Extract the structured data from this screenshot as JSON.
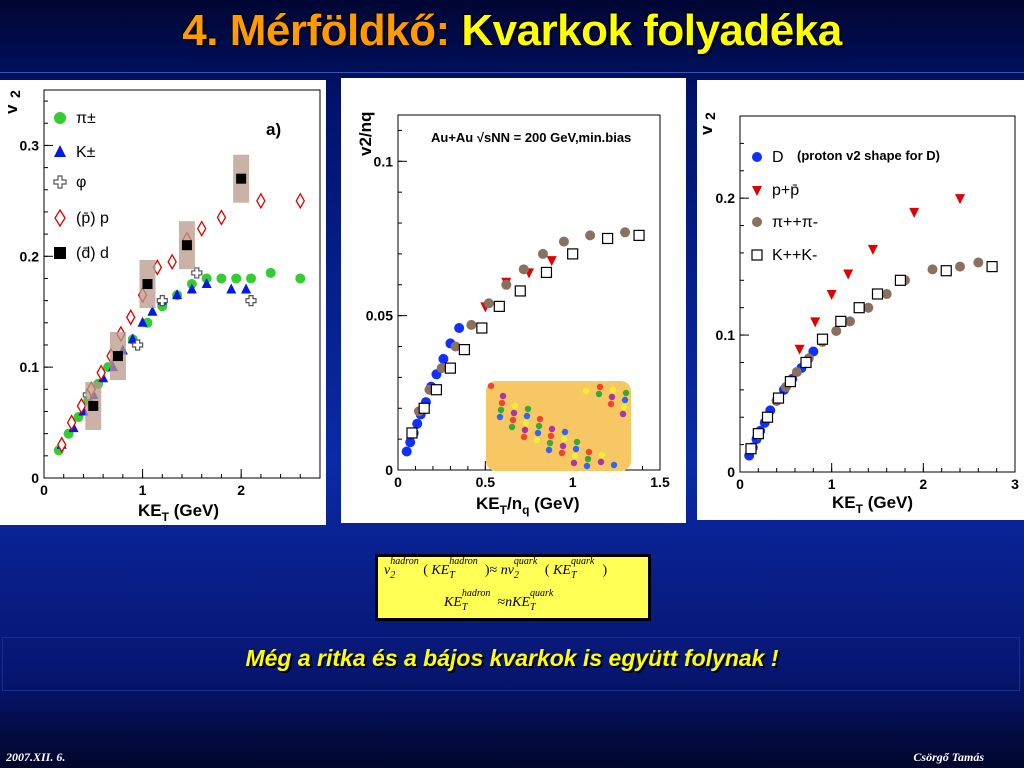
{
  "slide": {
    "title_prefix": "4. Mérföldkő: ",
    "title_main": "Kvarkok folyadéka",
    "statement": "Még a ritka és a bájos kvarkok is együtt folynak !",
    "footer_date": "2007.XII. 6.",
    "footer_author": "Csörgő Tamás",
    "formula": {
      "v": "v",
      "hadron": "hadron",
      "quark": "quark",
      "two": "2",
      "T": "T",
      "KE": "KE",
      "approx": "≈",
      "n": "n",
      "lparen": "(",
      "rparen": ")"
    }
  },
  "chart_data": [
    {
      "type": "scatter",
      "panel_label": "a)",
      "xlabel": "KE",
      "xlabel_sub": "T",
      "xlabel_unit": " (GeV)",
      "ylabel": "v",
      "ylabel_sub": "2",
      "xlim": [
        0,
        2.8
      ],
      "ylim": [
        0,
        0.35
      ],
      "xticks": [
        0,
        1,
        2
      ],
      "yticks": [
        0,
        0.1,
        0.2,
        0.3
      ],
      "legend": [
        "π±",
        "K±",
        "φ",
        "(p̄) p",
        "(d̄) d"
      ],
      "series": [
        {
          "name": "π±",
          "color": "#33cc33",
          "marker": "circle",
          "x": [
            0.15,
            0.25,
            0.35,
            0.45,
            0.55,
            0.65,
            0.75,
            0.9,
            1.05,
            1.2,
            1.35,
            1.5,
            1.65,
            1.8,
            1.95,
            2.1,
            2.3,
            2.6
          ],
          "y": [
            0.025,
            0.04,
            0.055,
            0.07,
            0.085,
            0.1,
            0.11,
            0.125,
            0.14,
            0.155,
            0.165,
            0.175,
            0.18,
            0.18,
            0.18,
            0.18,
            0.185,
            0.18
          ]
        },
        {
          "name": "K±",
          "color": "#0018e8",
          "marker": "triangle",
          "x": [
            0.18,
            0.3,
            0.4,
            0.5,
            0.6,
            0.7,
            0.8,
            0.9,
            1.0,
            1.1,
            1.2,
            1.35,
            1.5,
            1.65,
            1.9,
            2.05
          ],
          "y": [
            0.03,
            0.045,
            0.06,
            0.075,
            0.09,
            0.1,
            0.115,
            0.125,
            0.14,
            0.15,
            0.16,
            0.165,
            0.17,
            0.175,
            0.17,
            0.17
          ]
        },
        {
          "name": "φ",
          "color": "#555555",
          "marker": "cross",
          "x": [
            0.45,
            0.95,
            1.2,
            1.55,
            2.1
          ],
          "y": [
            0.075,
            0.12,
            0.16,
            0.185,
            0.16
          ]
        },
        {
          "name": "(p̄) p",
          "color": "#e00000",
          "marker": "diamond",
          "x": [
            0.18,
            0.28,
            0.38,
            0.48,
            0.58,
            0.68,
            0.78,
            0.88,
            1.0,
            1.15,
            1.3,
            1.45,
            1.6,
            1.8,
            2.2,
            2.6
          ],
          "y": [
            0.03,
            0.05,
            0.065,
            0.08,
            0.095,
            0.11,
            0.13,
            0.145,
            0.165,
            0.19,
            0.195,
            0.215,
            0.225,
            0.235,
            0.25,
            0.25
          ]
        },
        {
          "name": "(d̄) d",
          "color": "#000000",
          "marker": "square",
          "x": [
            0.5,
            0.75,
            1.05,
            1.45,
            2.0
          ],
          "y": [
            0.065,
            0.11,
            0.175,
            0.21,
            0.27
          ]
        }
      ]
    },
    {
      "type": "scatter",
      "annotation": "Au+Au √sNN = 200 GeV,min.bias",
      "xlabel": "KE",
      "xlabel_sub": "T",
      "xlabel_mid": "/n",
      "xlabel_sub2": "q",
      "xlabel_unit": " (GeV)",
      "ylabel": "v",
      "ylabel_sub": "2",
      "ylabel_mid": "/n",
      "ylabel_sub2": "q",
      "xlim": [
        0,
        1.5
      ],
      "ylim": [
        0,
        0.115
      ],
      "xticks": [
        0,
        0.5,
        1,
        1.5
      ],
      "xtick_labels": [
        "0",
        "0.5",
        "1",
        "1.5"
      ],
      "yticks": [
        0,
        0.05,
        0.1
      ],
      "ytick_labels": [
        "0",
        "0.05",
        "0.1"
      ],
      "series": [
        {
          "name": "D",
          "color": "#1030ff",
          "marker": "circle",
          "x": [
            0.05,
            0.07,
            0.09,
            0.11,
            0.13,
            0.16,
            0.19,
            0.22,
            0.26,
            0.3,
            0.35
          ],
          "y": [
            0.006,
            0.009,
            0.012,
            0.015,
            0.018,
            0.022,
            0.027,
            0.031,
            0.036,
            0.041,
            0.046
          ]
        },
        {
          "name": "p+p̄",
          "color": "#e00000",
          "marker": "triangle-down",
          "x": [
            0.5,
            0.62,
            0.75,
            0.88
          ],
          "y": [
            0.053,
            0.061,
            0.064,
            0.068
          ]
        },
        {
          "name": "π++π-",
          "color": "#8b6f5f",
          "marker": "circle",
          "x": [
            0.12,
            0.18,
            0.25,
            0.33,
            0.42,
            0.52,
            0.62,
            0.72,
            0.83,
            0.95,
            1.1,
            1.3
          ],
          "y": [
            0.019,
            0.026,
            0.033,
            0.04,
            0.047,
            0.054,
            0.06,
            0.065,
            0.07,
            0.074,
            0.076,
            0.077
          ]
        },
        {
          "name": "K++K-",
          "color": "#000000",
          "marker": "open-square",
          "x": [
            0.08,
            0.15,
            0.22,
            0.3,
            0.38,
            0.48,
            0.58,
            0.7,
            0.85,
            1.0,
            1.2,
            1.38
          ],
          "y": [
            0.012,
            0.02,
            0.026,
            0.033,
            0.039,
            0.046,
            0.053,
            0.058,
            0.064,
            0.07,
            0.075,
            0.076
          ]
        }
      ]
    },
    {
      "type": "scatter",
      "annotation": "(proton v2 shape for D)",
      "xlabel": "KE",
      "xlabel_sub": "T",
      "xlabel_unit": " (GeV)",
      "ylabel": "v",
      "ylabel_sub": "2",
      "xlim": [
        0,
        3.0
      ],
      "ylim": [
        0,
        0.26
      ],
      "xticks": [
        0,
        1,
        2,
        3
      ],
      "yticks": [
        0,
        0.1,
        0.2
      ],
      "legend": [
        "D",
        "p+p̄",
        "π++π-",
        "K++K-"
      ],
      "series": [
        {
          "name": "D",
          "color": "#1030ff",
          "marker": "circle",
          "x": [
            0.1,
            0.14,
            0.18,
            0.22,
            0.27,
            0.33,
            0.4,
            0.48,
            0.57,
            0.67,
            0.8
          ],
          "y": [
            0.012,
            0.018,
            0.024,
            0.03,
            0.036,
            0.045,
            0.052,
            0.06,
            0.068,
            0.076,
            0.088
          ]
        },
        {
          "name": "p+p̄",
          "color": "#e00000",
          "marker": "triangle-down",
          "x": [
            0.65,
            0.82,
            1.0,
            1.18,
            1.45,
            1.9,
            2.4
          ],
          "y": [
            0.09,
            0.11,
            0.13,
            0.145,
            0.163,
            0.19,
            0.2
          ]
        },
        {
          "name": "π++π-",
          "color": "#8b6f5f",
          "marker": "circle",
          "x": [
            0.2,
            0.3,
            0.4,
            0.5,
            0.62,
            0.75,
            0.9,
            1.05,
            1.2,
            1.4,
            1.6,
            1.8,
            2.1,
            2.4,
            2.6
          ],
          "y": [
            0.027,
            0.04,
            0.052,
            0.062,
            0.073,
            0.083,
            0.095,
            0.103,
            0.11,
            0.12,
            0.13,
            0.14,
            0.148,
            0.15,
            0.153
          ]
        },
        {
          "name": "K++K-",
          "color": "#000000",
          "marker": "open-square",
          "x": [
            0.12,
            0.2,
            0.3,
            0.42,
            0.55,
            0.72,
            0.9,
            1.1,
            1.3,
            1.5,
            1.75,
            2.25,
            2.75
          ],
          "y": [
            0.017,
            0.028,
            0.04,
            0.054,
            0.066,
            0.08,
            0.097,
            0.11,
            0.12,
            0.13,
            0.14,
            0.147,
            0.15
          ]
        }
      ]
    }
  ]
}
